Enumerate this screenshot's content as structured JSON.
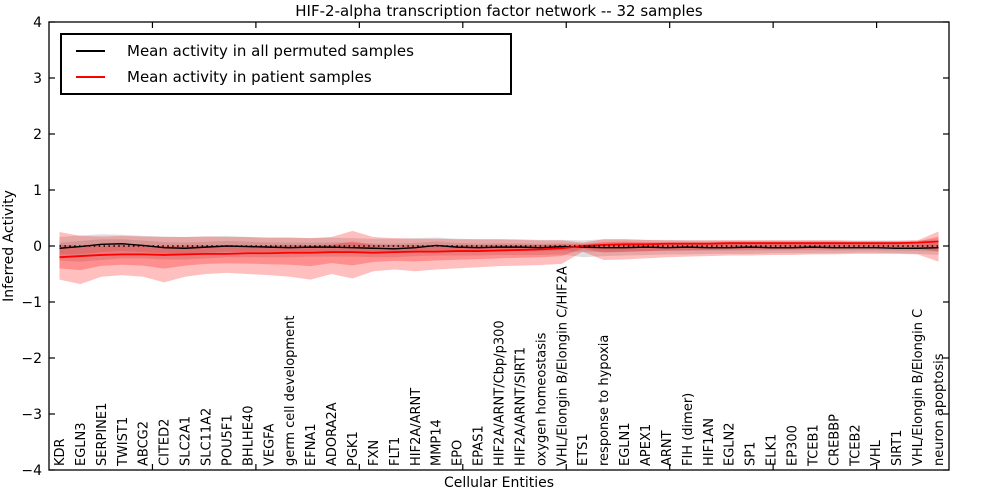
{
  "figure": {
    "title": "HIF-2-alpha transcription factor network -- 32 samples",
    "xlabel": "Cellular Entities",
    "ylabel": "Inferred Activity",
    "background": "#ffffff"
  },
  "legend": {
    "entries": [
      {
        "label": "Mean activity in all permuted samples",
        "color": "#000000"
      },
      {
        "label": "Mean activity in patient samples",
        "color": "#ff0000"
      }
    ]
  },
  "chart_data": {
    "type": "line",
    "title": "HIF-2-alpha transcription factor network -- 32 samples",
    "xlabel": "Cellular Entities",
    "ylabel": "Inferred Activity",
    "ylim": [
      -4,
      4
    ],
    "yticks": [
      4,
      3,
      2,
      1,
      0,
      -1,
      -2,
      -3,
      -4
    ],
    "ytick_labels": [
      "4",
      "3",
      "2",
      "1",
      "0",
      "−1",
      "−2",
      "−3",
      "−4"
    ],
    "x_major_tick_every": 5,
    "grid": false,
    "legend_position": "upper left",
    "zero_line": {
      "y": 0,
      "style": "dotted",
      "color": "#000000"
    },
    "categories": [
      "KDR",
      "EGLN3",
      "SERPINE1",
      "TWIST1",
      "ABCG2",
      "CITED2",
      "SLC2A1",
      "SLC11A2",
      "POU5F1",
      "BHLHE40",
      "VEGFA",
      "germ cell development",
      "EFNA1",
      "ADORA2A",
      "PGK1",
      "FXN",
      "FLT1",
      "HIF2A/ARNT",
      "MMP14",
      "EPO",
      "EPAS1",
      "HIF2A/ARNT/Cbp/p300",
      "HIF2A/ARNT/SIRT1",
      "oxygen homeostasis",
      "VHL/Elongin B/Elongin C/HIF2A",
      "ETS1",
      "response to hypoxia",
      "EGLN1",
      "APEX1",
      "ARNT",
      "FIH (dimer)",
      "HIF1AN",
      "EGLN2",
      "SP1",
      "ELK1",
      "EP300",
      "TCEB1",
      "CREBBP",
      "TCEB2",
      "VHL",
      "SIRT1",
      "VHL/Elongin B/Elongin C",
      "neuron apoptosis"
    ],
    "series": [
      {
        "name": "Mean activity in all permuted samples",
        "color": "#000000",
        "line_width": 1.4,
        "values": [
          -0.04,
          -0.01,
          0.03,
          0.04,
          0.01,
          -0.03,
          -0.04,
          -0.02,
          0.0,
          -0.01,
          -0.02,
          -0.03,
          -0.02,
          -0.02,
          -0.03,
          -0.04,
          -0.05,
          -0.03,
          0.01,
          -0.02,
          -0.03,
          -0.02,
          -0.02,
          -0.03,
          -0.01,
          -0.02,
          -0.03,
          -0.03,
          -0.02,
          -0.03,
          -0.02,
          -0.03,
          -0.03,
          -0.02,
          -0.03,
          -0.03,
          -0.02,
          -0.03,
          -0.03,
          -0.03,
          -0.04,
          -0.04,
          -0.03
        ],
        "band_upper": [
          0.16,
          0.19,
          0.21,
          0.2,
          0.18,
          0.17,
          0.16,
          0.17,
          0.18,
          0.16,
          0.15,
          0.15,
          0.14,
          0.15,
          0.14,
          0.13,
          0.13,
          0.14,
          0.15,
          0.13,
          0.12,
          0.12,
          0.12,
          0.11,
          0.11,
          0.1,
          0.12,
          0.12,
          0.11,
          0.11,
          0.1,
          0.1,
          0.1,
          0.1,
          0.1,
          0.1,
          0.1,
          0.1,
          0.1,
          0.1,
          0.1,
          0.1,
          0.12
        ],
        "band_lower": [
          -0.26,
          -0.28,
          -0.25,
          -0.22,
          -0.22,
          -0.24,
          -0.24,
          -0.22,
          -0.2,
          -0.2,
          -0.2,
          -0.2,
          -0.19,
          -0.19,
          -0.19,
          -0.2,
          -0.2,
          -0.18,
          -0.17,
          -0.17,
          -0.17,
          -0.16,
          -0.16,
          -0.16,
          -0.15,
          -0.2,
          -0.18,
          -0.17,
          -0.16,
          -0.15,
          -0.15,
          -0.14,
          -0.14,
          -0.14,
          -0.13,
          -0.13,
          -0.13,
          -0.13,
          -0.12,
          -0.12,
          -0.13,
          -0.14,
          -0.16
        ],
        "band_color": "#808080",
        "band_opacity": 0.25,
        "inner_band_scale": 0.5
      },
      {
        "name": "Mean activity in patient samples",
        "color": "#ff0000",
        "line_width": 1.8,
        "values": [
          -0.2,
          -0.18,
          -0.16,
          -0.15,
          -0.15,
          -0.16,
          -0.15,
          -0.14,
          -0.14,
          -0.13,
          -0.13,
          -0.12,
          -0.12,
          -0.11,
          -0.11,
          -0.12,
          -0.11,
          -0.1,
          -0.1,
          -0.09,
          -0.09,
          -0.08,
          -0.07,
          -0.06,
          -0.04,
          0.0,
          0.02,
          0.03,
          0.03,
          0.04,
          0.04,
          0.04,
          0.05,
          0.05,
          0.05,
          0.05,
          0.05,
          0.05,
          0.05,
          0.05,
          0.05,
          0.06,
          0.08
        ],
        "band_upper": [
          0.25,
          0.18,
          0.17,
          0.18,
          0.17,
          0.16,
          0.16,
          0.17,
          0.16,
          0.16,
          0.15,
          0.15,
          0.14,
          0.16,
          0.27,
          0.16,
          0.14,
          0.13,
          0.13,
          0.12,
          0.12,
          0.12,
          0.11,
          0.1,
          0.1,
          0.06,
          0.12,
          0.12,
          0.11,
          0.1,
          0.1,
          0.1,
          0.1,
          0.1,
          0.1,
          0.1,
          0.1,
          0.1,
          0.09,
          0.09,
          0.09,
          0.1,
          0.26
        ],
        "band_lower": [
          -0.6,
          -0.68,
          -0.55,
          -0.52,
          -0.55,
          -0.65,
          -0.55,
          -0.5,
          -0.48,
          -0.5,
          -0.52,
          -0.55,
          -0.6,
          -0.5,
          -0.58,
          -0.45,
          -0.42,
          -0.45,
          -0.42,
          -0.4,
          -0.38,
          -0.36,
          -0.35,
          -0.34,
          -0.32,
          -0.1,
          -0.25,
          -0.24,
          -0.22,
          -0.2,
          -0.19,
          -0.18,
          -0.17,
          -0.17,
          -0.16,
          -0.16,
          -0.15,
          -0.15,
          -0.14,
          -0.14,
          -0.14,
          -0.15,
          -0.28
        ],
        "band_color": "#ff0000",
        "band_opacity": 0.25,
        "inner_band_scale": 0.5
      }
    ]
  }
}
